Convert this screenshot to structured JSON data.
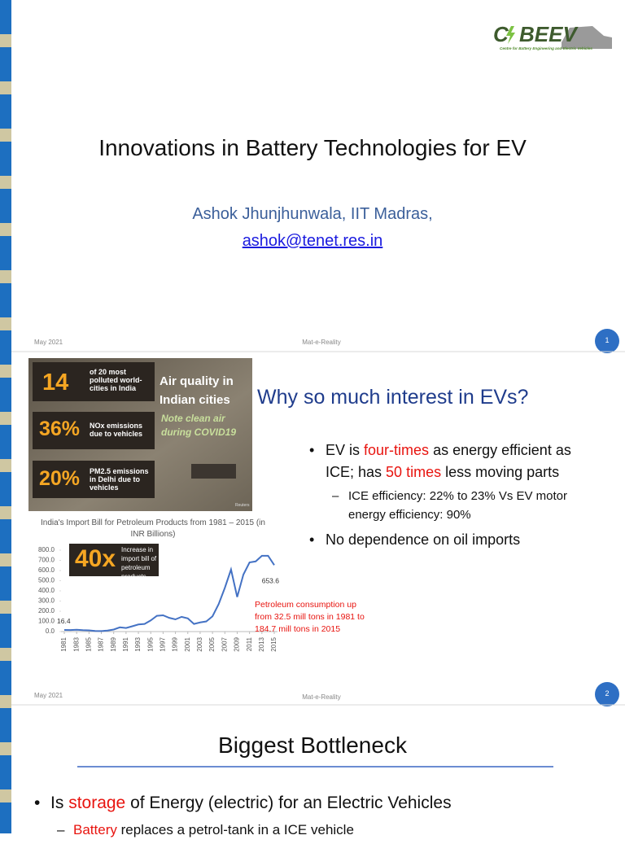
{
  "slide_1": {
    "logo": {
      "first": "C",
      "rest": "BEEV",
      "tagline": "Centre for Battery Engineering and Electric Vehicles"
    },
    "title": "Innovations in Battery Technologies for EV",
    "author": "Ashok Jhunjhunwala, IIT Madras,",
    "email": "ashok@tenet.res.in",
    "footer": {
      "date": "May 2021",
      "center": "Mat-e-Reality",
      "page": "1"
    }
  },
  "slide_2": {
    "image": {
      "stats": [
        {
          "value": "14",
          "text": "of 20 most polluted world-cities in India"
        },
        {
          "value": "36%",
          "text": "NOx emissions due to vehicles"
        },
        {
          "value": "20%",
          "text": "PM2.5 emissions in Delhi due to vehicles"
        }
      ],
      "headline": "Air quality in Indian cities",
      "note": "Note clean air during COVID19",
      "credit": "Reuters"
    },
    "title": "Why so much interest in EVs?",
    "bullets": [
      {
        "segments": [
          {
            "text": "EV is"
          },
          {
            "text": "four-times",
            "emphasis": true
          },
          {
            "text": "as energy efficient as ICE; has"
          },
          {
            "text": "50 times",
            "emphasis": true
          },
          {
            "text": "less moving parts"
          }
        ],
        "sub": [
          "ICE efficiency: 22% to 23% Vs EV motor energy efficiency: 90%"
        ]
      },
      {
        "segments": [
          {
            "text": "No dependence on oil imports"
          }
        ],
        "sub": []
      }
    ],
    "footer": {
      "date": "May 2021",
      "center": "Mat-e-Reality",
      "page": "2"
    }
  },
  "chart_data": {
    "type": "line",
    "title": "India's Import Bill for Petroleum Products from 1981 – 2015 (in INR Billions)",
    "x": [
      1981,
      1982,
      1983,
      1984,
      1985,
      1986,
      1987,
      1988,
      1989,
      1990,
      1991,
      1992,
      1993,
      1994,
      1995,
      1996,
      1997,
      1998,
      1999,
      2000,
      2001,
      2002,
      2003,
      2004,
      2005,
      2006,
      2007,
      2008,
      2009,
      2010,
      2011,
      2012,
      2013,
      2014,
      2015
    ],
    "values": [
      16.4,
      15,
      18,
      14,
      12,
      6,
      5,
      10,
      20,
      42,
      35,
      52,
      70,
      75,
      110,
      155,
      160,
      135,
      120,
      145,
      130,
      75,
      90,
      100,
      150,
      270,
      430,
      610,
      340,
      560,
      680,
      690,
      745,
      745,
      653.6
    ],
    "color": "#4472c4",
    "xlim": [
      1981,
      2015
    ],
    "xticks": [
      1981,
      1983,
      1985,
      1987,
      1989,
      1991,
      1993,
      1995,
      1997,
      1999,
      2001,
      2003,
      2005,
      2007,
      2009,
      2011,
      2013,
      2015
    ],
    "ylim": [
      0,
      800
    ],
    "yticks": [
      {
        "value": 0,
        "label": "0.0"
      },
      {
        "value": 100,
        "label": "100.0"
      },
      {
        "value": 200,
        "label": "200.0"
      },
      {
        "value": 300,
        "label": "300.0"
      },
      {
        "value": 400,
        "label": "400.0"
      },
      {
        "value": 500,
        "label": "500.0"
      },
      {
        "value": 600,
        "label": "600.0"
      },
      {
        "value": 700,
        "label": "700.0"
      },
      {
        "value": 800,
        "label": "800.0"
      }
    ],
    "labeled_points": [
      0,
      34
    ],
    "callout": {
      "value": "40x",
      "text": "Increase in import bill of petroleum products"
    },
    "note": "Petroleum consumption up from 32.5 mill tons in 1981 to 184.7 mill tons in 2015"
  },
  "slide_3": {
    "title": "Biggest Bottleneck",
    "bullets": [
      {
        "segments": [
          {
            "text": "Is"
          },
          {
            "text": "storage",
            "emphasis": true
          },
          {
            "text": "of Energy (electric) for an Electric Vehicles"
          }
        ],
        "sub": [
          [
            {
              "text": "Battery",
              "emphasis": true
            },
            {
              "text": "replaces a petrol-tank in a ICE vehicle"
            }
          ]
        ]
      }
    ]
  }
}
